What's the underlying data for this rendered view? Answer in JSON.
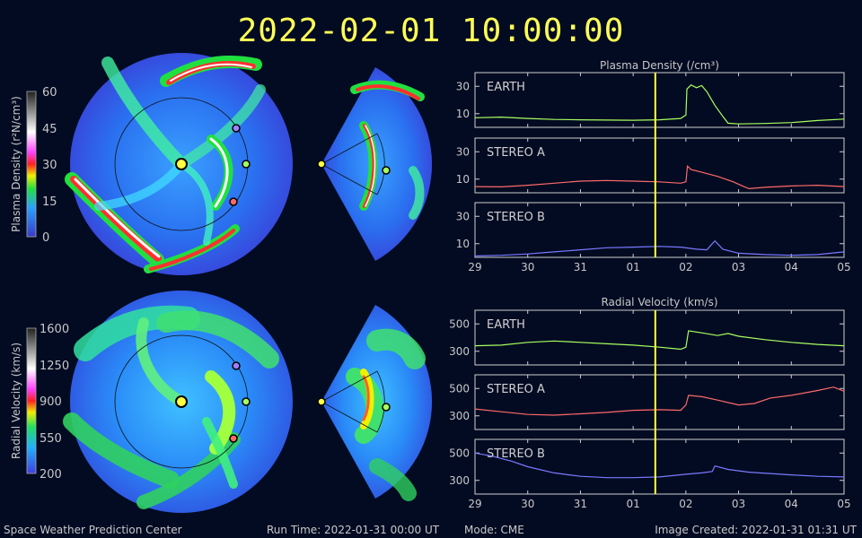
{
  "header": {
    "timestamp": "2022-02-01  10:00:00"
  },
  "colorbars": {
    "density": {
      "label": "Plasma Density (r²N/cm³)",
      "ticks": [
        "60",
        "45",
        "30",
        "15",
        "0"
      ]
    },
    "velocity": {
      "label": "Radial Velocity (km/s)",
      "ticks": [
        "1600",
        "1250",
        "900",
        "550",
        "200"
      ]
    }
  },
  "footer": {
    "org": "Space Weather Prediction Center",
    "run_time": "Run Time: 2022-01-31 00:00 UT",
    "mode": "Mode: CME",
    "created": "Image Created: 2022-01-31 01:31 UT"
  },
  "colors": {
    "earth": "#a8ff60",
    "stereo_a": "#ff6a6a",
    "stereo_b": "#7a7aff",
    "current_time_marker": "#ffff40",
    "title": "#ffff55"
  },
  "chart_data": [
    {
      "type": "line",
      "title": "Plasma Density (/cm³)",
      "x_ticks": [
        "29",
        "30",
        "31",
        "01",
        "02",
        "03",
        "04",
        "05"
      ],
      "x_range": [
        0,
        7
      ],
      "current_time_x": 3.42,
      "panels": [
        {
          "name": "EARTH",
          "color": "#a8ff60",
          "yticks": [
            10,
            30
          ],
          "ylim": [
            0,
            40
          ],
          "x": [
            0,
            0.5,
            1,
            1.5,
            2,
            2.5,
            3,
            3.5,
            3.9,
            4.0,
            4.02,
            4.1,
            4.2,
            4.3,
            4.4,
            4.55,
            4.7,
            4.8,
            5,
            5.5,
            6,
            6.5,
            7
          ],
          "y": [
            7,
            7.5,
            6.5,
            5.8,
            5.5,
            5.3,
            5.2,
            5.5,
            6.5,
            9,
            28,
            31,
            29,
            30.5,
            26,
            16,
            8,
            3,
            2.5,
            2.8,
            3.5,
            5,
            6
          ]
        },
        {
          "name": "STEREO A",
          "color": "#ff6a6a",
          "yticks": [
            10,
            30
          ],
          "ylim": [
            0,
            40
          ],
          "x": [
            0,
            0.5,
            1,
            1.5,
            2,
            2.5,
            3,
            3.5,
            3.9,
            4.0,
            4.03,
            4.1,
            4.3,
            4.6,
            4.9,
            5.1,
            5.2,
            5.5,
            6,
            6.5,
            7
          ],
          "y": [
            4.5,
            4.3,
            5.5,
            7,
            8.5,
            9,
            8.5,
            8,
            7,
            8,
            19.5,
            17,
            15,
            12,
            8,
            4.5,
            3,
            4,
            5,
            5.5,
            4.5
          ]
        },
        {
          "name": "STEREO B",
          "color": "#7a7aff",
          "yticks": [
            10,
            30
          ],
          "ylim": [
            0,
            40
          ],
          "x": [
            0,
            0.5,
            1,
            1.5,
            2,
            2.5,
            3,
            3.5,
            3.9,
            4.2,
            4.4,
            4.5,
            4.55,
            4.7,
            5,
            5.5,
            6,
            6.5,
            7
          ],
          "y": [
            1,
            1.5,
            2.5,
            4,
            5.5,
            7,
            7.5,
            8,
            7.5,
            6,
            5.5,
            10,
            12,
            6,
            3,
            2,
            1.5,
            2,
            4
          ]
        }
      ]
    },
    {
      "type": "line",
      "title": "Radial Velocity (km/s)",
      "x_ticks": [
        "29",
        "30",
        "31",
        "01",
        "02",
        "03",
        "04",
        "05"
      ],
      "x_range": [
        0,
        7
      ],
      "current_time_x": 3.42,
      "panels": [
        {
          "name": "EARTH",
          "color": "#a8ff60",
          "yticks": [
            300,
            500
          ],
          "ylim": [
            200,
            600
          ],
          "x": [
            0,
            0.5,
            1,
            1.5,
            2,
            2.5,
            3,
            3.5,
            3.9,
            4.0,
            4.05,
            4.3,
            4.6,
            4.8,
            5,
            5.5,
            6,
            6.5,
            7
          ],
          "y": [
            340,
            345,
            365,
            375,
            365,
            355,
            345,
            330,
            315,
            330,
            450,
            435,
            415,
            430,
            410,
            385,
            365,
            350,
            340
          ]
        },
        {
          "name": "STEREO A",
          "color": "#ff6a6a",
          "yticks": [
            300,
            500
          ],
          "ylim": [
            200,
            600
          ],
          "x": [
            0,
            0.5,
            1,
            1.5,
            2,
            2.5,
            3,
            3.5,
            3.9,
            4.0,
            4.05,
            4.3,
            4.6,
            5,
            5.3,
            5.6,
            6,
            6.5,
            6.8,
            7
          ],
          "y": [
            350,
            330,
            310,
            305,
            315,
            325,
            340,
            345,
            340,
            380,
            450,
            440,
            415,
            380,
            390,
            430,
            450,
            485,
            510,
            480
          ]
        },
        {
          "name": "STEREO B",
          "color": "#7a7aff",
          "yticks": [
            300,
            500
          ],
          "ylim": [
            200,
            600
          ],
          "x": [
            0,
            0.3,
            0.7,
            1,
            1.5,
            2,
            2.5,
            3,
            3.5,
            4.0,
            4.3,
            4.5,
            4.55,
            4.8,
            5.2,
            5.6,
            6,
            6.5,
            7
          ],
          "y": [
            500,
            480,
            440,
            400,
            355,
            330,
            320,
            320,
            325,
            345,
            355,
            365,
            405,
            380,
            360,
            350,
            340,
            330,
            325
          ]
        }
      ]
    }
  ]
}
